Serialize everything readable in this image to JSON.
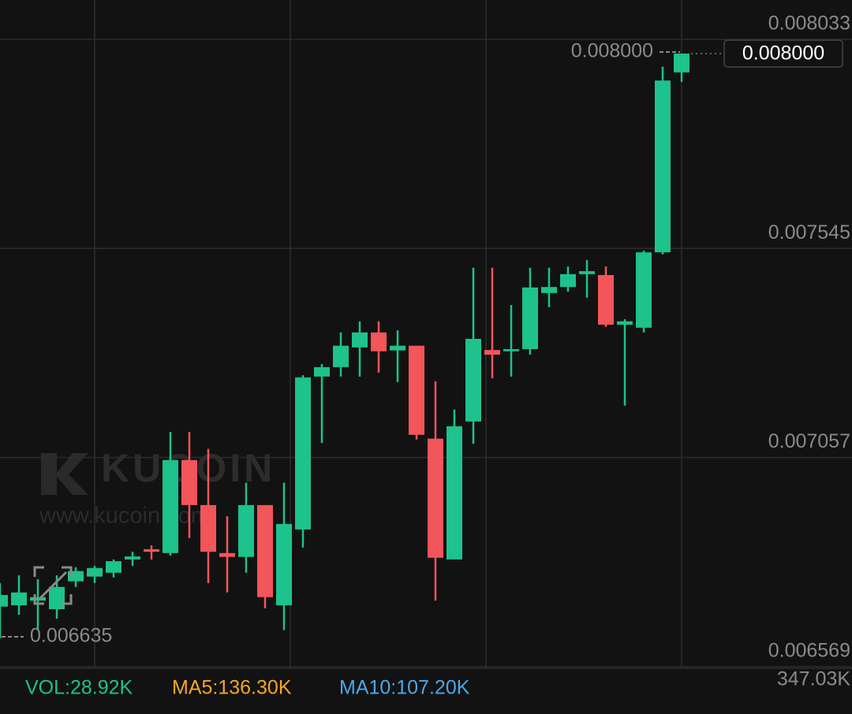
{
  "chart_data": {
    "type": "candlestick",
    "open": [
      0.006709,
      0.006712,
      0.006723,
      0.006703,
      0.006768,
      0.006779,
      0.006788,
      0.006819,
      0.006843,
      0.006834,
      0.007051,
      0.006946,
      0.006834,
      0.006825,
      0.006946,
      0.006712,
      0.006889,
      0.007246,
      0.007268,
      0.007314,
      0.007349,
      0.007307,
      0.007318,
      0.007101,
      0.006819,
      0.007141,
      0.007308,
      0.007305,
      0.00731,
      0.007441,
      0.007455,
      0.007485,
      0.007483,
      0.007367,
      0.00736,
      0.007536,
      0.007956
    ],
    "high": [
      0.006764,
      0.006782,
      0.006773,
      0.006782,
      0.006801,
      0.006804,
      0.006819,
      0.006837,
      0.006852,
      0.007117,
      0.007117,
      0.007077,
      0.00692,
      0.006998,
      0.006946,
      0.006998,
      0.007249,
      0.007275,
      0.007349,
      0.007375,
      0.007375,
      0.007354,
      0.007318,
      0.007235,
      0.007169,
      0.0075,
      0.0075,
      0.007413,
      0.0075,
      0.0075,
      0.007503,
      0.007518,
      0.007503,
      0.00738,
      0.00754,
      0.007969,
      0.008
    ],
    "low": [
      0.006635,
      0.00669,
      0.006654,
      0.006681,
      0.006755,
      0.006764,
      0.006777,
      0.006804,
      0.006819,
      0.006828,
      0.006869,
      0.006764,
      0.006742,
      0.006788,
      0.006705,
      0.006654,
      0.006847,
      0.007091,
      0.007246,
      0.007246,
      0.007255,
      0.007233,
      0.007099,
      0.006723,
      0.006819,
      0.007089,
      0.007242,
      0.007246,
      0.007297,
      0.007408,
      0.007444,
      0.00743,
      0.007362,
      0.007178,
      0.007349,
      0.007531,
      0.007934
    ],
    "close": [
      0.006736,
      0.006742,
      0.006731,
      0.006755,
      0.006792,
      0.006799,
      0.006815,
      0.006826,
      0.006837,
      0.007051,
      0.006946,
      0.006837,
      0.006825,
      0.006946,
      0.006731,
      0.006902,
      0.007244,
      0.007268,
      0.007318,
      0.007349,
      0.007305,
      0.007318,
      0.00711,
      0.006823,
      0.00713,
      0.007334,
      0.007297,
      0.00731,
      0.007454,
      0.007455,
      0.007485,
      0.007492,
      0.007367,
      0.007375,
      0.007536,
      0.007937,
      0.008
    ],
    "up_color": "#1dc28c",
    "down_color": "#f2555a",
    "ylim": [
      0.006565,
      0.008125
    ],
    "yticks": [
      0.008033,
      0.007545,
      0.007057,
      0.006569
    ],
    "grid": true,
    "last_price": {
      "value": 0.008,
      "label": "0.008000"
    },
    "max_marker": {
      "value": 0.008,
      "label": "0.008000"
    },
    "min_marker": {
      "value": 0.006635,
      "label": "0.006635"
    },
    "watermark": [
      "KUCOIN",
      "www.kucoin.com"
    ],
    "indicators": [
      {
        "label": "VOL:28.92K",
        "color": "#1dc28c"
      },
      {
        "label": "MA5:136.30K",
        "color": "#f5a623"
      },
      {
        "label": "MA10:107.20K",
        "color": "#4aa8e8"
      }
    ],
    "volume_axis_label": "347.03K"
  }
}
